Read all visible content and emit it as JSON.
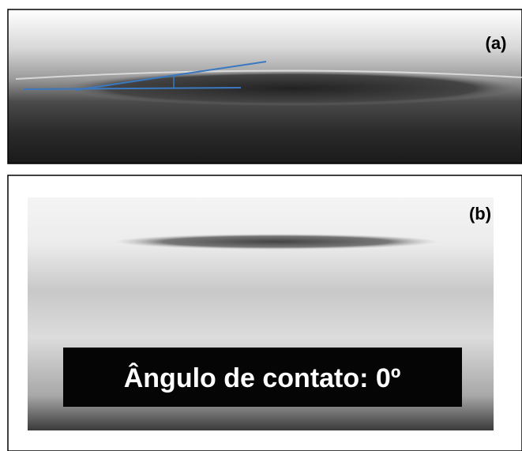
{
  "panels": [
    {
      "label": "(a)"
    },
    {
      "label": "(b)",
      "caption": "Ângulo de contato: 0º"
    }
  ]
}
